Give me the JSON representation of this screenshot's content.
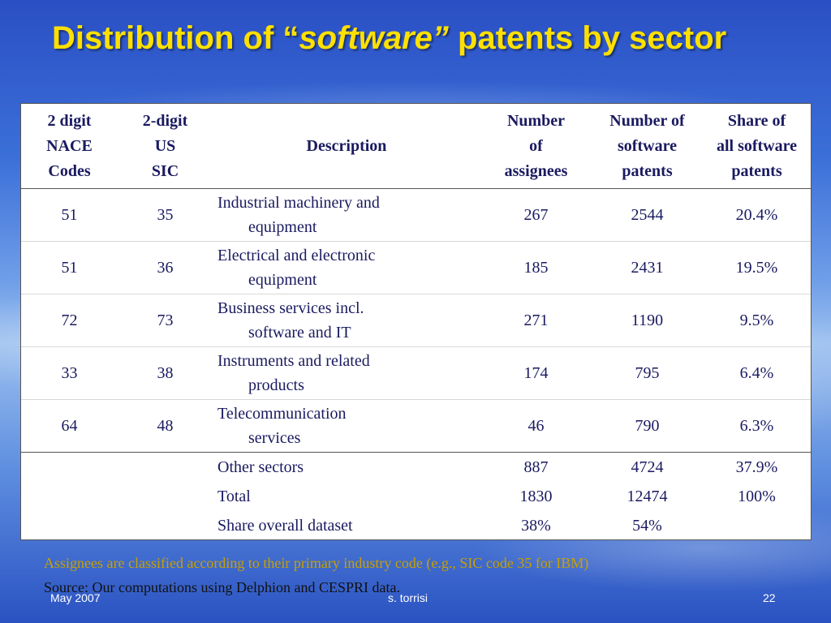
{
  "slide": {
    "title_prefix": "Distribution of “",
    "title_italic": "software”",
    "title_suffix": " patents by sector"
  },
  "table": {
    "headers": [
      [
        "2 digit",
        "NACE",
        "Codes"
      ],
      [
        "2-digit",
        "US",
        "SIC"
      ],
      [
        "Description"
      ],
      [
        "Number",
        "of",
        "assignees"
      ],
      [
        "Number of",
        "software",
        "patents"
      ],
      [
        "Share of",
        "all software",
        "patents"
      ]
    ],
    "rows": [
      {
        "nace": "51",
        "sic": "35",
        "desc1": "Industrial machinery and",
        "desc2": "equipment",
        "assignees": "267",
        "patents": "2544",
        "share": "20.4%"
      },
      {
        "nace": "51",
        "sic": "36",
        "desc1": "Electrical and electronic",
        "desc2": "equipment",
        "assignees": "185",
        "patents": "2431",
        "share": "19.5%"
      },
      {
        "nace": "72",
        "sic": "73",
        "desc1": "Business services incl.",
        "desc2": "software and IT",
        "assignees": "271",
        "patents": "1190",
        "share": "9.5%"
      },
      {
        "nace": "33",
        "sic": "38",
        "desc1": "Instruments and related",
        "desc2": "products",
        "assignees": "174",
        "patents": "795",
        "share": "6.4%"
      },
      {
        "nace": "64",
        "sic": "48",
        "desc1": "Telecommunication",
        "desc2": "services",
        "assignees": "46",
        "patents": "790",
        "share": "6.3%"
      }
    ],
    "summary": [
      {
        "desc": "Other sectors",
        "assignees": "887",
        "patents": "4724",
        "share": "37.9%"
      },
      {
        "desc": "Total",
        "assignees": "1830",
        "patents": "12474",
        "share": "100%"
      },
      {
        "desc": "Share overall dataset",
        "assignees": "38%",
        "patents": "54%",
        "share": ""
      }
    ]
  },
  "notes": {
    "classification": "Assignees are classified according to their primary industry code (e.g., SIC code 35 for IBM)",
    "source": "Source: Our computations using Delphion and CESPRI data."
  },
  "footer": {
    "date": "May 2007",
    "author": "s. torrisi",
    "page": "22"
  },
  "colors": {
    "title": "#ffe000",
    "table_text": "#1a1a60",
    "note_highlight": "#c8a000"
  }
}
